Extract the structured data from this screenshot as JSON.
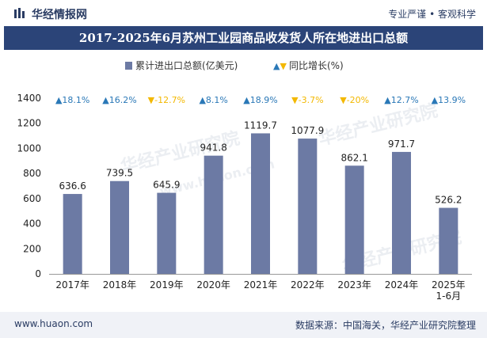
{
  "header": {
    "brand": "华经情报网",
    "slogan": "专业严谨 • 客观科学"
  },
  "title": "2017-2025年6月苏州工业园商品收发货人所在地进出口总额",
  "legend": {
    "bar_label": "累计进出口总额(亿美元)",
    "growth_label": "同比增长(%)"
  },
  "footer": {
    "website": "www.huaon.com",
    "source": "数据来源：中国海关，华经产业研究院整理"
  },
  "watermark": {
    "text1": "华经产业研究院",
    "text2": "www.huaon.com"
  },
  "colors": {
    "bar": "#6c7aa4",
    "up": "#2a78b7",
    "down": "#f3b800",
    "title_bg": "#2b4478"
  },
  "chart_data": {
    "type": "bar",
    "categories": [
      "2017年",
      "2018年",
      "2019年",
      "2020年",
      "2021年",
      "2022年",
      "2023年",
      "2024年",
      "2025年\n1-6月"
    ],
    "series": [
      {
        "name": "累计进出口总额(亿美元)",
        "values": [
          636.6,
          739.5,
          645.9,
          941.8,
          1119.7,
          1077.9,
          862.1,
          971.7,
          526.2
        ],
        "labels": [
          "636.6",
          "739.5",
          "645.9",
          "941.8",
          "1119.7",
          "1077.9",
          "862.1",
          "971.7",
          "526.2"
        ]
      },
      {
        "name": "同比增长(%)",
        "values": [
          18.1,
          16.2,
          -12.7,
          8.1,
          18.9,
          -3.7,
          -20,
          12.7,
          13.9
        ],
        "labels": [
          "18.1%",
          "16.2%",
          "-12.7%",
          "8.1%",
          "18.9%",
          "-3.7%",
          "-20%",
          "12.7%",
          "13.9%"
        ]
      }
    ],
    "yticks": [
      "0",
      "200",
      "400",
      "600",
      "800",
      "1000",
      "1200",
      "1400"
    ],
    "ylim": [
      0,
      1400
    ],
    "grid": false
  }
}
